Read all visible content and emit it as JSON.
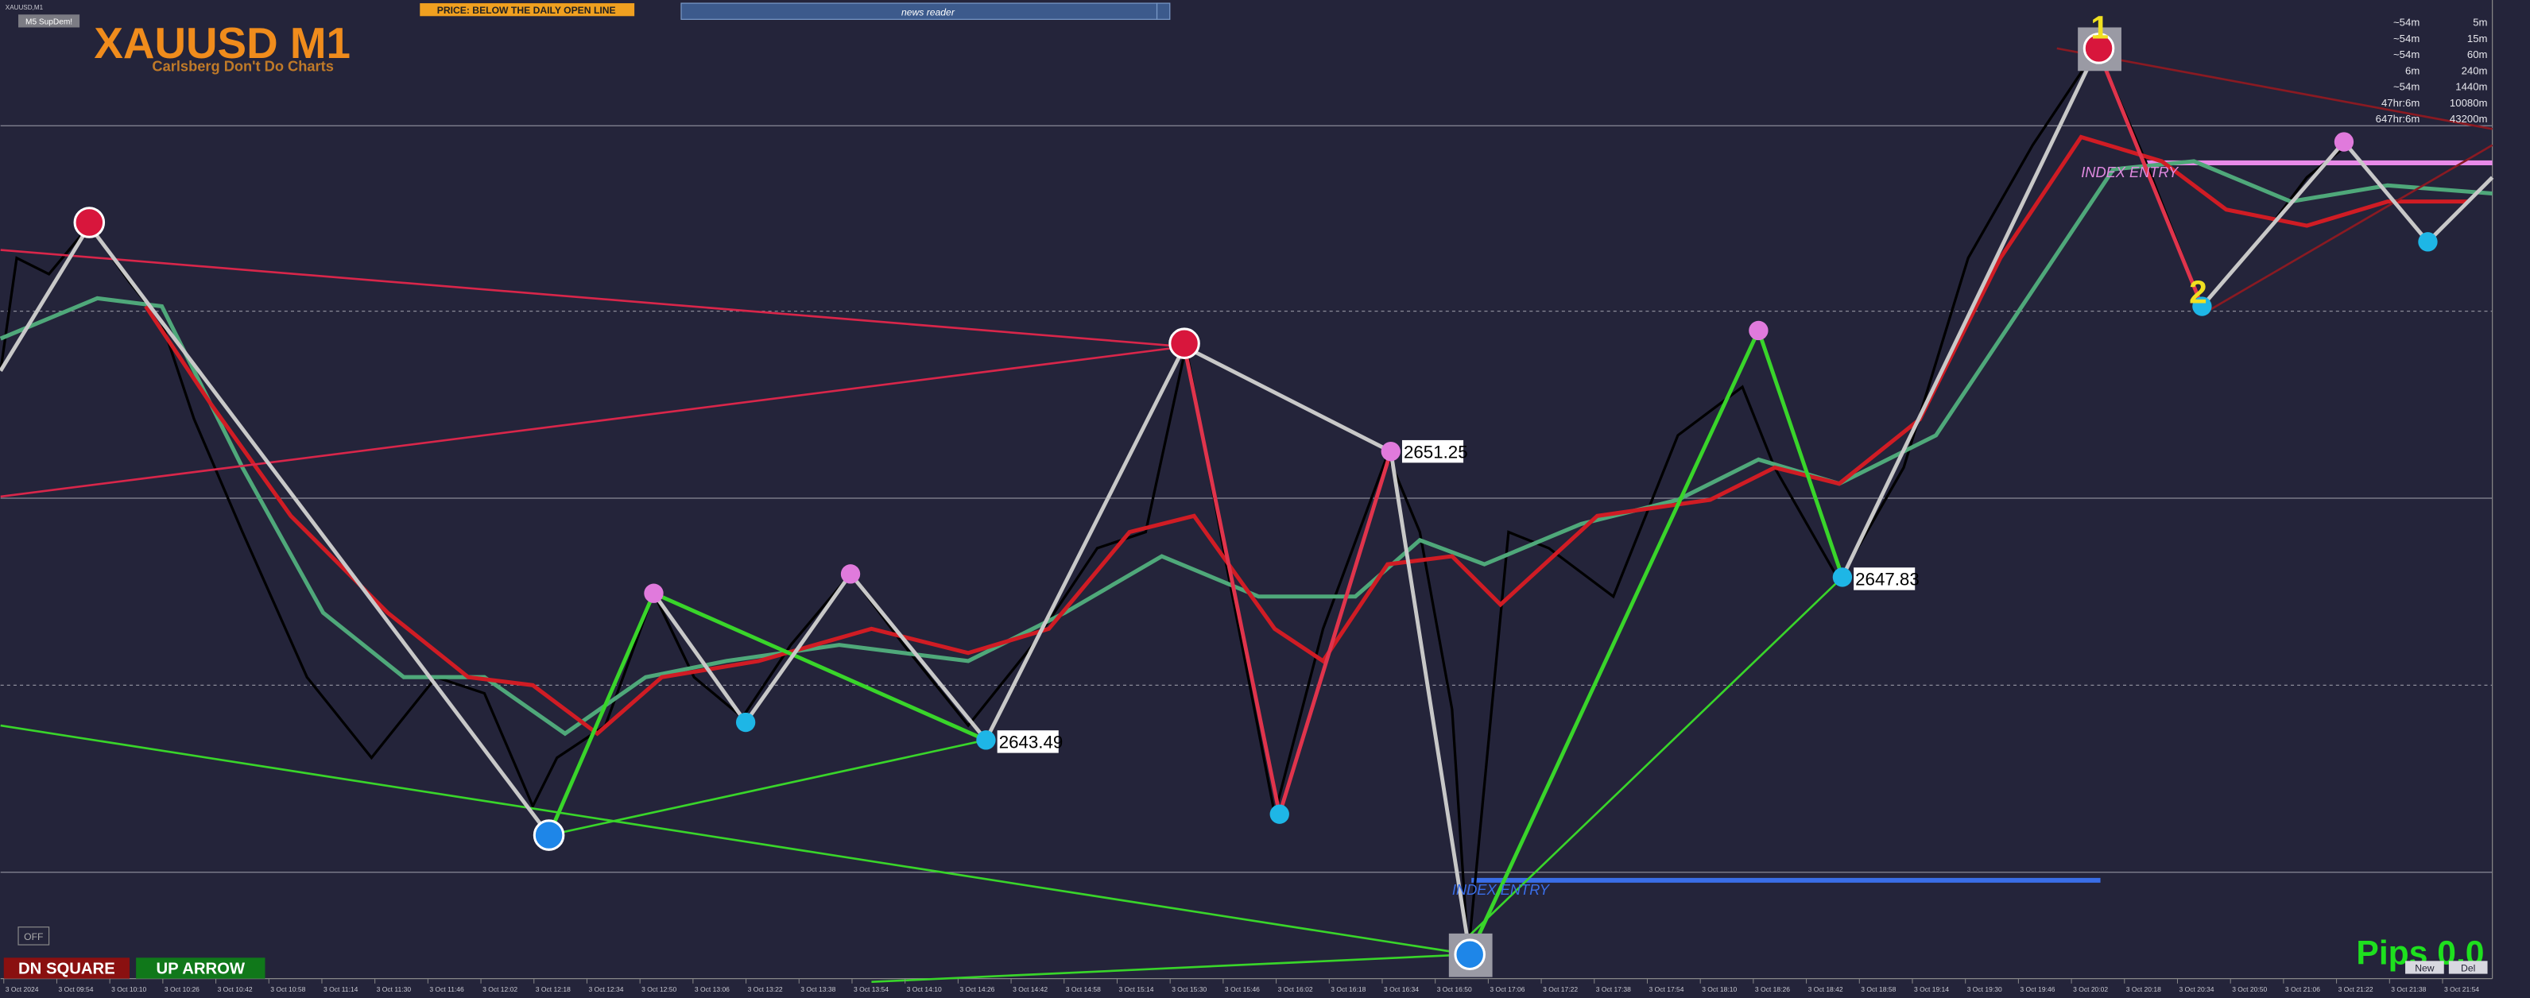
{
  "window": {
    "symbol_tab": "XAUUSD,M1",
    "button": "M5 SupDem!"
  },
  "header": {
    "title": "XAUUSD M1",
    "subtitle": "Carlsberg Don't Do Charts",
    "banner": "PRICE: BELOW THE DAILY OPEN LINE",
    "news": "news reader"
  },
  "timers": [
    [
      "~54m",
      "5m"
    ],
    [
      "~54m",
      "15m"
    ],
    [
      "~54m",
      "60m"
    ],
    [
      "6m",
      "240m"
    ],
    [
      "~54m",
      "1440m"
    ],
    [
      "47hr:6m",
      "10080m"
    ],
    [
      "647hr:6m",
      "43200m"
    ]
  ],
  "price_labels": [
    "2651.25",
    "2643.49",
    "2647.83"
  ],
  "zone_labels": [
    "INDEX ENTRY",
    "INDEX ENTRY"
  ],
  "markers": [
    "1",
    "2"
  ],
  "buttons": {
    "off": "OFF",
    "dn_square": "DN SQUARE",
    "up_arrow": "UP ARROW",
    "new": "New",
    "del": "Del"
  },
  "pips": "Pips 0.0",
  "time_axis": [
    "3 Oct 2024",
    "3 Oct 09:54",
    "3 Oct 10:10",
    "3 Oct 10:26",
    "3 Oct 10:42",
    "3 Oct 10:58",
    "3 Oct 11:14",
    "3 Oct 11:30",
    "3 Oct 11:46",
    "3 Oct 12:02",
    "3 Oct 12:18",
    "3 Oct 12:34",
    "3 Oct 12:50",
    "3 Oct 13:06",
    "3 Oct 13:22",
    "3 Oct 13:38",
    "3 Oct 13:54",
    "3 Oct 14:10",
    "3 Oct 14:26",
    "3 Oct 14:42",
    "3 Oct 14:58",
    "3 Oct 15:14",
    "3 Oct 15:30",
    "3 Oct 15:46",
    "3 Oct 16:02",
    "3 Oct 16:18",
    "3 Oct 16:34",
    "3 Oct 16:50",
    "3 Oct 17:06",
    "3 Oct 17:22",
    "3 Oct 17:38",
    "3 Oct 17:54",
    "3 Oct 18:10",
    "3 Oct 18:26",
    "3 Oct 18:42",
    "3 Oct 18:58",
    "3 Oct 19:14",
    "3 Oct 19:30",
    "3 Oct 19:46",
    "3 Oct 20:02",
    "3 Oct 20:18",
    "3 Oct 20:34",
    "3 Oct 20:50",
    "3 Oct 21:06",
    "3 Oct 21:22",
    "3 Oct 21:38",
    "3 Oct 21:54"
  ]
}
